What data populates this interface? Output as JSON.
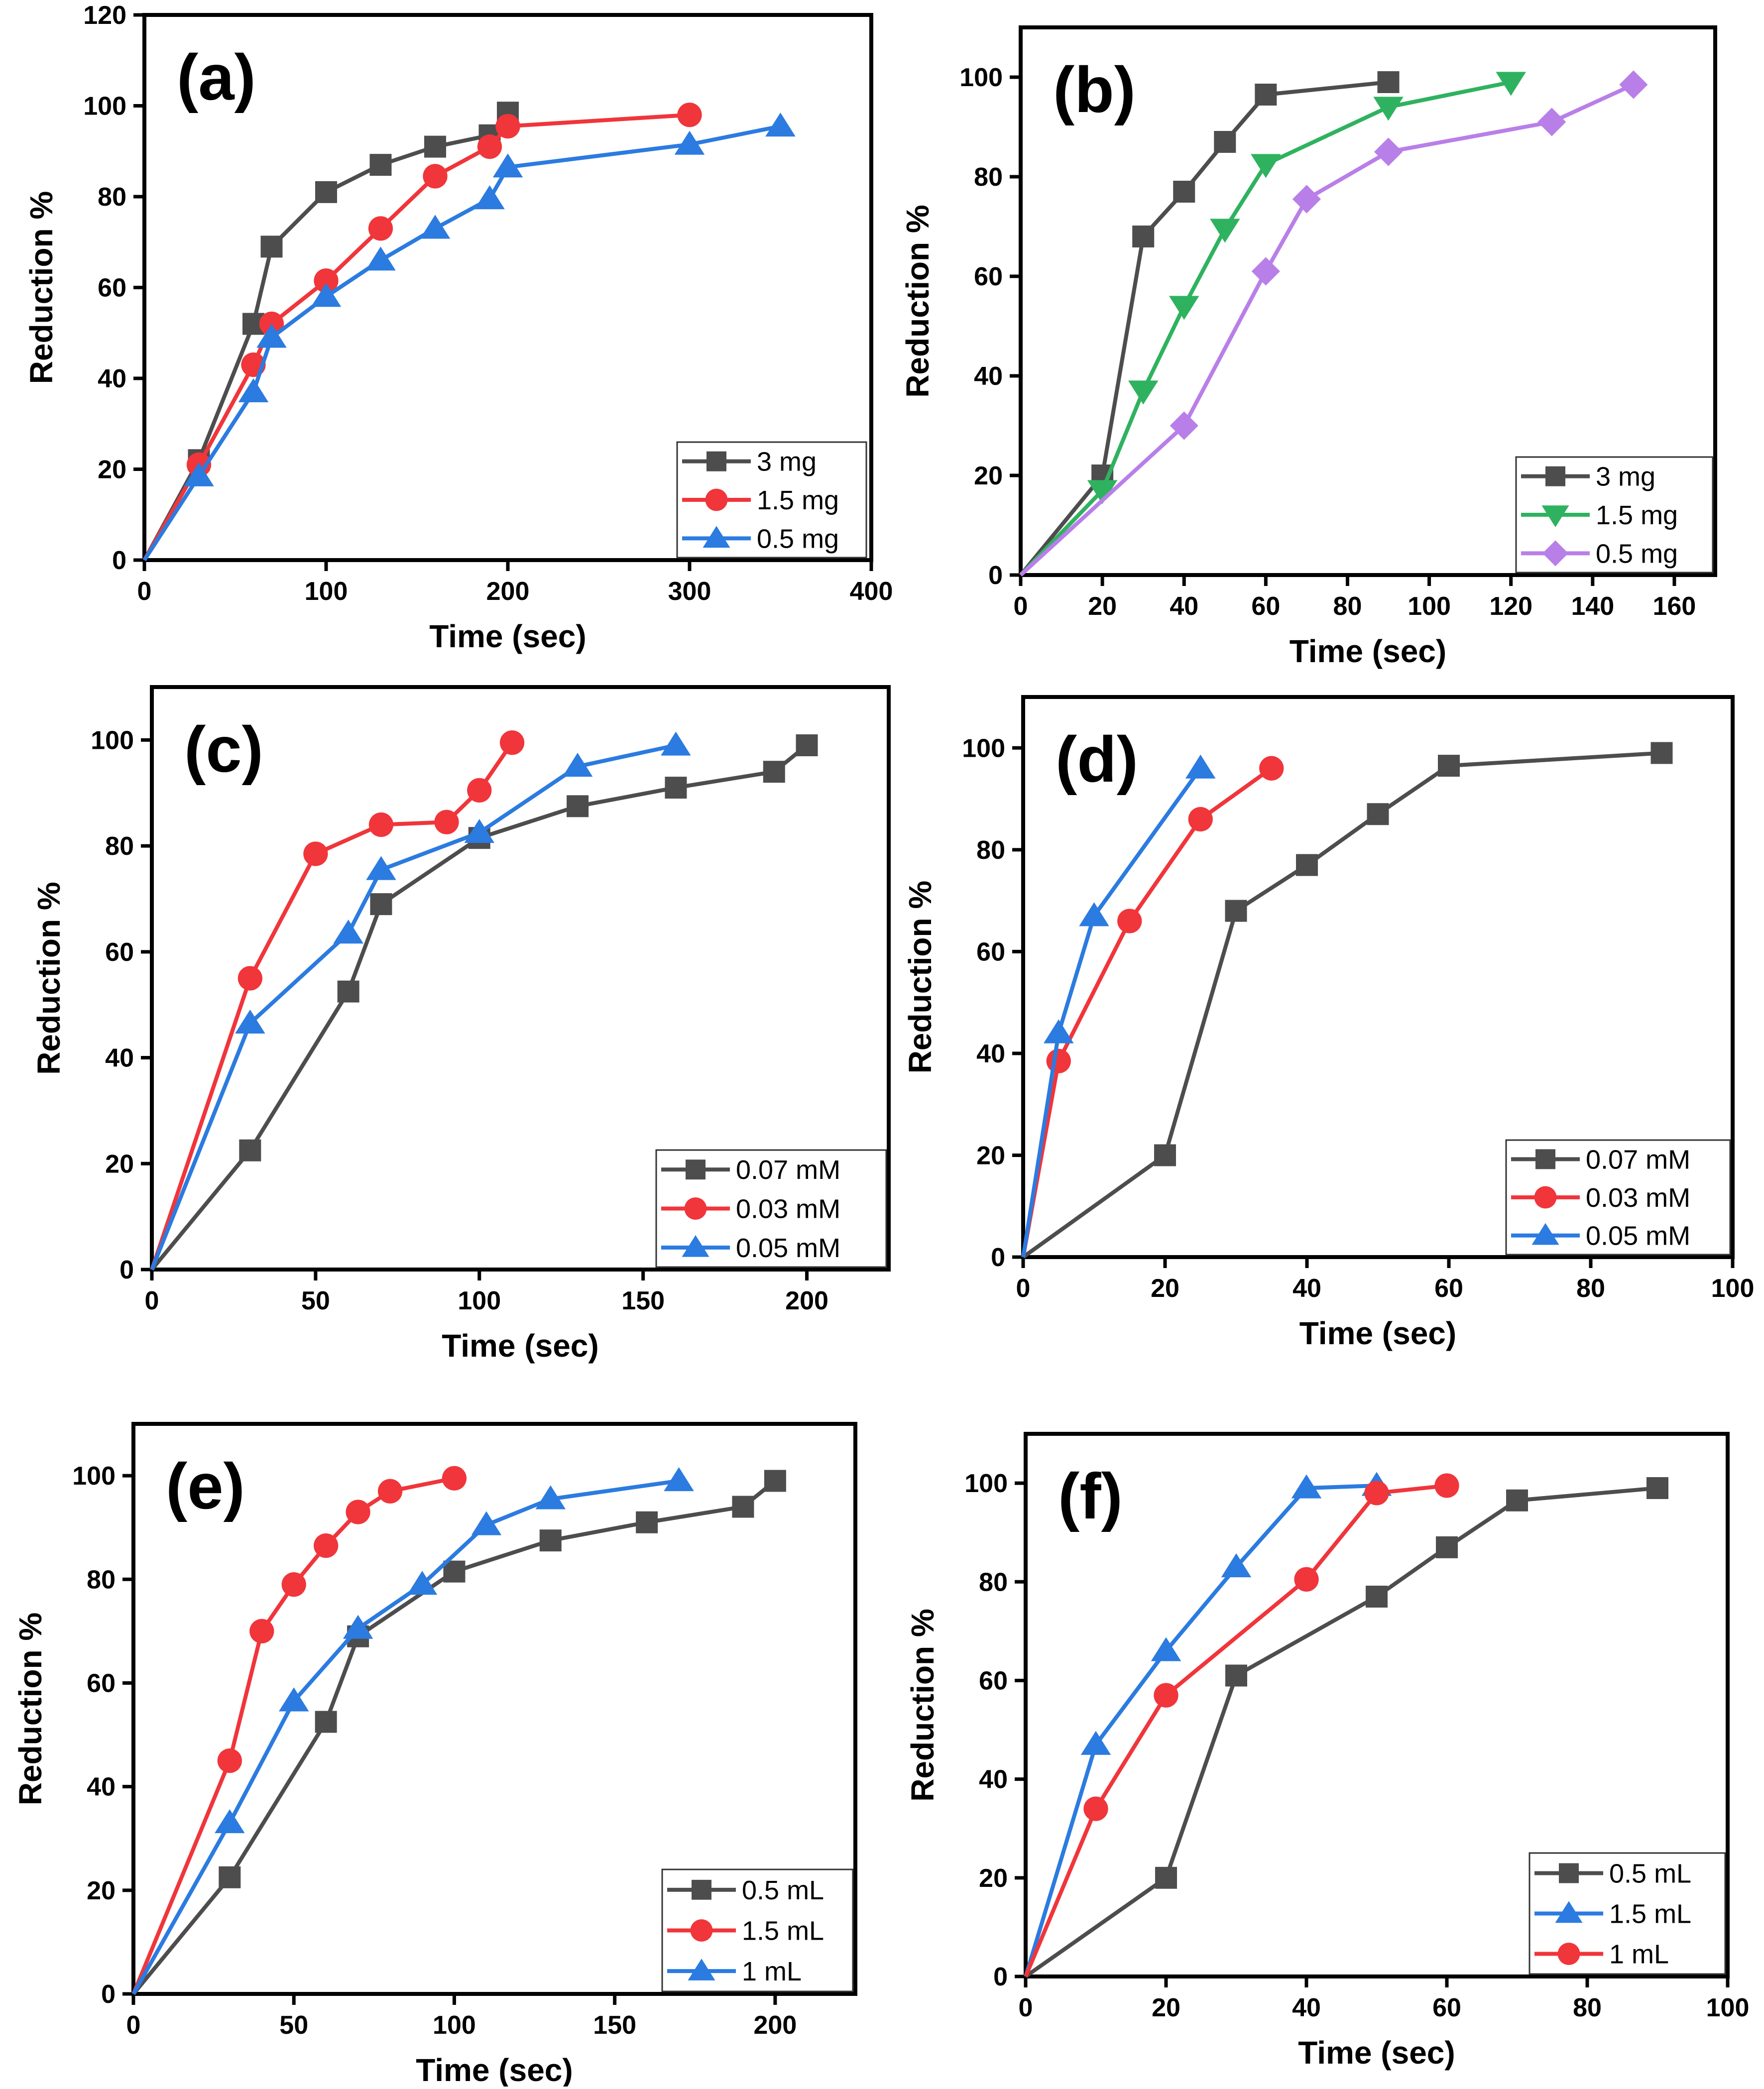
{
  "chart_data": [
    {
      "type": "line",
      "label": "(a)",
      "xlabel": "Time (sec)",
      "ylabel": "Reduction %",
      "xlim": [
        0,
        400
      ],
      "ylim": [
        0,
        120
      ],
      "xticks": [
        0,
        100,
        200,
        300,
        400
      ],
      "yticks": [
        0,
        20,
        40,
        60,
        80,
        100,
        120
      ],
      "grid": false,
      "legend_position": "bottom-right",
      "series": [
        {
          "name": "3 mg",
          "color": "#4d4d4d",
          "marker": "square",
          "x": [
            0,
            30,
            60,
            70,
            100,
            130,
            160,
            190,
            200
          ],
          "y": [
            0,
            22,
            52,
            69,
            81,
            87,
            91,
            93.5,
            98.5
          ]
        },
        {
          "name": "1.5 mg",
          "color": "#f0353b",
          "marker": "circle",
          "x": [
            0,
            30,
            60,
            70,
            100,
            130,
            160,
            190,
            200,
            300
          ],
          "y": [
            0,
            21,
            43,
            52,
            61.5,
            73,
            84.5,
            91,
            95.5,
            98
          ]
        },
        {
          "name": "0.5 mg",
          "color": "#2b7be0",
          "marker": "triangle-up",
          "x": [
            0,
            30,
            60,
            70,
            100,
            130,
            160,
            190,
            200,
            300,
            350
          ],
          "y": [
            0,
            18.5,
            37,
            49,
            58,
            66,
            73,
            79.5,
            86.5,
            91.5,
            95.5
          ]
        }
      ]
    },
    {
      "type": "line",
      "label": "(b)",
      "xlabel": "Time (sec)",
      "ylabel": "Reduction %",
      "xlim": [
        0,
        170
      ],
      "ylim": [
        0,
        110
      ],
      "xticks": [
        0,
        20,
        40,
        60,
        80,
        100,
        120,
        140,
        160
      ],
      "yticks": [
        0,
        20,
        40,
        60,
        80,
        100
      ],
      "grid": false,
      "legend_position": "bottom-right",
      "series": [
        {
          "name": "3 mg",
          "color": "#4d4d4d",
          "marker": "square",
          "x": [
            0,
            20,
            30,
            40,
            50,
            60,
            90
          ],
          "y": [
            0,
            20,
            68,
            77,
            87,
            96.5,
            99
          ]
        },
        {
          "name": "1.5 mg",
          "color": "#2fb25f",
          "marker": "triangle-down",
          "x": [
            0,
            20,
            30,
            40,
            50,
            60,
            90,
            120
          ],
          "y": [
            0,
            17,
            37,
            54,
            69.5,
            82.5,
            94,
            99
          ]
        },
        {
          "name": "0.5 mg",
          "color": "#b97fe8",
          "marker": "diamond",
          "x": [
            0,
            40,
            60,
            70,
            90,
            130,
            150
          ],
          "y": [
            0,
            30,
            61,
            75.5,
            85,
            91,
            98.5
          ]
        }
      ]
    },
    {
      "type": "line",
      "label": "(c)",
      "xlabel": "Time (sec)",
      "ylabel": "Reduction %",
      "xlim": [
        0,
        225
      ],
      "ylim": [
        0,
        110
      ],
      "xticks": [
        0,
        50,
        100,
        150,
        200
      ],
      "yticks": [
        0,
        20,
        40,
        60,
        80,
        100
      ],
      "grid": false,
      "legend_position": "bottom-right",
      "series": [
        {
          "name": "0.07 mM",
          "color": "#4d4d4d",
          "marker": "square",
          "x": [
            0,
            30,
            60,
            70,
            100,
            130,
            160,
            190,
            200
          ],
          "y": [
            0,
            22.5,
            52.5,
            69,
            81.5,
            87.5,
            91,
            94,
            99
          ]
        },
        {
          "name": "0.03 mM",
          "color": "#f0353b",
          "marker": "circle",
          "x": [
            0,
            30,
            50,
            70,
            90,
            100,
            110
          ],
          "y": [
            0,
            55,
            78.5,
            84,
            84.5,
            90.5,
            99.5
          ]
        },
        {
          "name": "0.05 mM",
          "color": "#2b7be0",
          "marker": "triangle-up",
          "x": [
            0,
            30,
            60,
            70,
            100,
            130,
            160
          ],
          "y": [
            0,
            46.5,
            63.5,
            75.5,
            82.5,
            95,
            99
          ]
        }
      ]
    },
    {
      "type": "line",
      "label": "(d)",
      "xlabel": "Time (sec)",
      "ylabel": "Reduction %",
      "xlim": [
        0,
        100
      ],
      "ylim": [
        0,
        110
      ],
      "xticks": [
        0,
        20,
        40,
        60,
        80,
        100
      ],
      "yticks": [
        0,
        20,
        40,
        60,
        80,
        100
      ],
      "grid": false,
      "legend_position": "bottom-right",
      "series": [
        {
          "name": "0.07 mM",
          "color": "#4d4d4d",
          "marker": "square",
          "x": [
            0,
            20,
            30,
            40,
            50,
            60,
            90
          ],
          "y": [
            0,
            20,
            68,
            77,
            87,
            96.5,
            99
          ]
        },
        {
          "name": "0.03 mM",
          "color": "#f0353b",
          "marker": "circle",
          "x": [
            0,
            5,
            15,
            25,
            35
          ],
          "y": [
            0,
            38.5,
            66,
            86,
            96
          ]
        },
        {
          "name": "0.05 mM",
          "color": "#2b7be0",
          "marker": "triangle-up",
          "x": [
            0,
            5,
            10,
            25
          ],
          "y": [
            0,
            44,
            67,
            96
          ]
        }
      ]
    },
    {
      "type": "line",
      "label": "(e)",
      "xlabel": "Time (sec)",
      "ylabel": "Reduction %",
      "xlim": [
        0,
        225
      ],
      "ylim": [
        0,
        110
      ],
      "xticks": [
        0,
        50,
        100,
        150,
        200
      ],
      "yticks": [
        0,
        20,
        40,
        60,
        80,
        100
      ],
      "grid": false,
      "legend_position": "bottom-right",
      "series": [
        {
          "name": "0.5 mL",
          "color": "#4d4d4d",
          "marker": "square",
          "x": [
            0,
            30,
            60,
            70,
            100,
            130,
            160,
            190,
            200
          ],
          "y": [
            0,
            22.5,
            52.5,
            69,
            81.5,
            87.5,
            91,
            94,
            99
          ]
        },
        {
          "name": "1.5 mL",
          "color": "#f0353b",
          "marker": "circle",
          "x": [
            0,
            30,
            40,
            50,
            60,
            70,
            80,
            100
          ],
          "y": [
            0,
            45,
            70,
            79,
            86.5,
            93,
            97,
            99.5
          ]
        },
        {
          "name": "1 mL",
          "color": "#2b7be0",
          "marker": "triangle-up",
          "x": [
            0,
            30,
            50,
            70,
            90,
            110,
            130,
            170
          ],
          "y": [
            0,
            33,
            56.5,
            70.5,
            79,
            90.5,
            95.5,
            99
          ]
        }
      ]
    },
    {
      "type": "line",
      "label": "(f)",
      "xlabel": "Time (sec)",
      "ylabel": "Reduction %",
      "xlim": [
        0,
        100
      ],
      "ylim": [
        0,
        110
      ],
      "xticks": [
        0,
        20,
        40,
        60,
        80,
        100
      ],
      "yticks": [
        0,
        20,
        40,
        60,
        80,
        100
      ],
      "grid": false,
      "legend_position": "bottom-right",
      "series": [
        {
          "name": "0.5 mL",
          "color": "#4d4d4d",
          "marker": "square",
          "x": [
            0,
            20,
            30,
            50,
            60,
            70,
            90
          ],
          "y": [
            0,
            20,
            61,
            77,
            87,
            96.5,
            99
          ]
        },
        {
          "name": "1.5 mL",
          "color": "#2b7be0",
          "marker": "triangle-up",
          "x": [
            0,
            10,
            20,
            30,
            40,
            50
          ],
          "y": [
            0,
            47,
            66,
            83,
            99,
            99.5
          ]
        },
        {
          "name": "1 mL",
          "color": "#f0353b",
          "marker": "circle",
          "x": [
            0,
            10,
            20,
            40,
            50,
            60
          ],
          "y": [
            0,
            34,
            57,
            80.5,
            98,
            99.5
          ]
        }
      ]
    }
  ]
}
